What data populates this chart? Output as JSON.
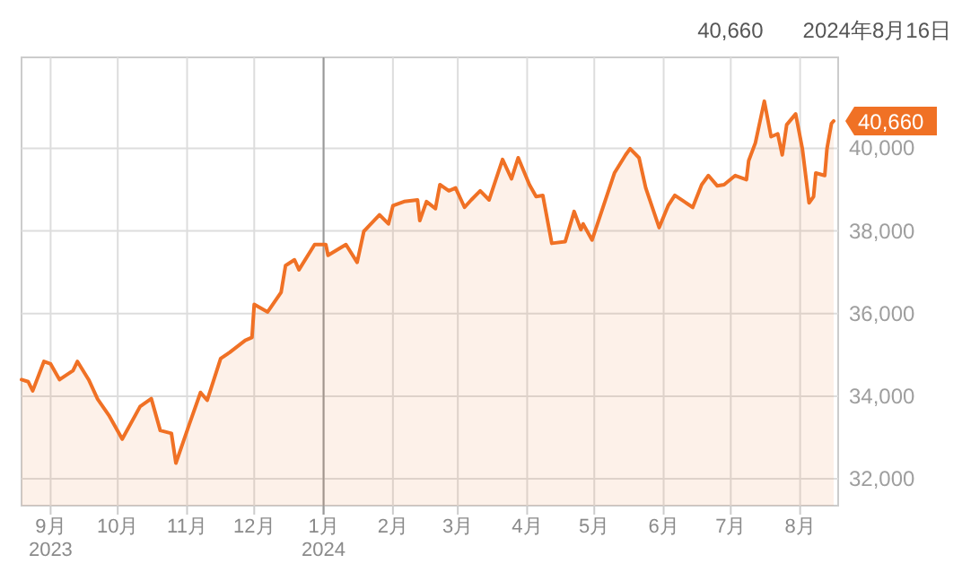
{
  "chart_data": {
    "type": "area",
    "x": [
      "2023-08-19",
      "2023-08-22",
      "2023-08-24",
      "2023-08-29",
      "2023-09-01",
      "2023-09-05",
      "2023-09-11",
      "2023-09-13",
      "2023-09-18",
      "2023-09-22",
      "2023-09-27",
      "2023-10-03",
      "2023-10-11",
      "2023-10-16",
      "2023-10-20",
      "2023-10-25",
      "2023-10-27",
      "2023-11-02",
      "2023-11-07",
      "2023-11-10",
      "2023-11-16",
      "2023-11-20",
      "2023-11-27",
      "2023-11-30",
      "2023-12-01",
      "2023-12-07",
      "2023-12-13",
      "2023-12-15",
      "2023-12-19",
      "2023-12-21",
      "2023-12-28",
      "2024-01-02",
      "2024-01-03",
      "2024-01-11",
      "2024-01-16",
      "2024-01-19",
      "2024-01-26",
      "2024-01-30",
      "2024-02-01",
      "2024-02-06",
      "2024-02-12",
      "2024-02-13",
      "2024-02-16",
      "2024-02-20",
      "2024-02-22",
      "2024-02-26",
      "2024-02-29",
      "2024-03-04",
      "2024-03-07",
      "2024-03-11",
      "2024-03-15",
      "2024-03-21",
      "2024-03-25",
      "2024-03-28",
      "2024-04-02",
      "2024-04-05",
      "2024-04-08",
      "2024-04-12",
      "2024-04-18",
      "2024-04-22",
      "2024-04-25",
      "2024-04-26",
      "2024-04-30",
      "2024-05-06",
      "2024-05-10",
      "2024-05-15",
      "2024-05-17",
      "2024-05-21",
      "2024-05-24",
      "2024-05-30",
      "2024-06-03",
      "2024-06-06",
      "2024-06-14",
      "2024-06-18",
      "2024-06-21",
      "2024-06-25",
      "2024-06-28",
      "2024-07-03",
      "2024-07-08",
      "2024-07-09",
      "2024-07-12",
      "2024-07-16",
      "2024-07-19",
      "2024-07-22",
      "2024-07-24",
      "2024-07-26",
      "2024-07-30",
      "2024-08-02",
      "2024-08-05",
      "2024-08-07",
      "2024-08-08",
      "2024-08-12",
      "2024-08-13",
      "2024-08-15",
      "2024-08-16"
    ],
    "series": [
      {
        "color": "#f07125",
        "values": [
          34400,
          34350,
          34130,
          34840,
          34780,
          34400,
          34620,
          34840,
          34400,
          33930,
          33540,
          32960,
          33750,
          33940,
          33170,
          33100,
          32380,
          33320,
          34090,
          33900,
          34910,
          35060,
          35350,
          35420,
          36220,
          36040,
          36510,
          37160,
          37300,
          37060,
          37670,
          37670,
          37410,
          37670,
          37240,
          37990,
          38390,
          38170,
          38610,
          38710,
          38750,
          38250,
          38710,
          38540,
          39120,
          38970,
          39040,
          38570,
          38750,
          38970,
          38750,
          39730,
          39260,
          39770,
          39120,
          38830,
          38860,
          37700,
          37740,
          38470,
          38030,
          38170,
          37780,
          38750,
          39400,
          39840,
          39990,
          39770,
          39040,
          38080,
          38610,
          38860,
          38570,
          39120,
          39340,
          39090,
          39120,
          39340,
          39240,
          39700,
          40130,
          41140,
          40280,
          40350,
          39840,
          40570,
          40830,
          39990,
          38680,
          38830,
          39400,
          39340,
          39990,
          40600,
          40660
        ]
      }
    ],
    "xlim": [
      "2023-08-19",
      "2024-08-18"
    ],
    "xticks": [
      {
        "value": "2023-09-01",
        "label": "9月\n2023"
      },
      {
        "value": "2023-10-01",
        "label": "10月"
      },
      {
        "value": "2023-11-01",
        "label": "11月"
      },
      {
        "value": "2023-12-01",
        "label": "12月"
      },
      {
        "value": "2024-01-01",
        "label": "1月\n2024"
      },
      {
        "value": "2024-02-01",
        "label": "2月"
      },
      {
        "value": "2024-03-01",
        "label": "3月"
      },
      {
        "value": "2024-04-01",
        "label": "4月"
      },
      {
        "value": "2024-05-01",
        "label": "5月"
      },
      {
        "value": "2024-06-01",
        "label": "6月"
      },
      {
        "value": "2024-07-01",
        "label": "7月"
      },
      {
        "value": "2024-08-01",
        "label": "8月"
      }
    ],
    "ylim": [
      31350,
      42200
    ],
    "yticks": [
      {
        "value": 32000,
        "label": "32,000"
      },
      {
        "value": 34000,
        "label": "34,000"
      },
      {
        "value": 36000,
        "label": "36,000"
      },
      {
        "value": 38000,
        "label": "38,000"
      },
      {
        "value": 40000,
        "label": "40,000"
      }
    ],
    "grid": true,
    "ref_lines": [
      {
        "axis": "x",
        "value": "2024-01-01",
        "color": "#999999"
      }
    ],
    "annotations": [
      "40,660",
      "2024年8月16日",
      {
        "text": "40,660",
        "x": "2024-08-16",
        "y": 40660
      }
    ]
  }
}
